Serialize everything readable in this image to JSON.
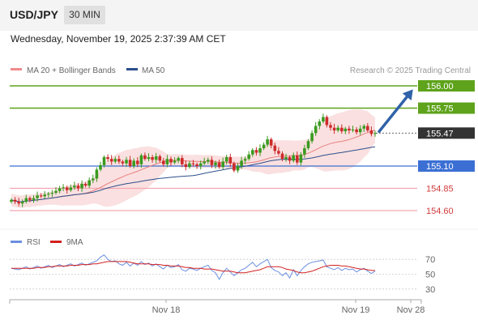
{
  "header": {
    "pair": "USD/JPY",
    "timeframe": "30 MIN",
    "datetime": "Wednesday, November 19, 2025 2:37:39 AM CET"
  },
  "legend": {
    "ma20_label": "MA 20 + Bollinger Bands",
    "ma50_label": "MA 50",
    "copyright": "Research © 2025 Trading Central",
    "rsi_label": "RSI",
    "ma9_label": "9MA"
  },
  "colors": {
    "up_candle": "#3a9a1f",
    "down_candle": "#cc2b2b",
    "ma20_band": "#f5c6c6",
    "ma20": "#e88080",
    "ma50": "#2c4f8c",
    "resistance": "#5ea31b",
    "pivot": "#3b6fd4",
    "support": "#f2a6b4",
    "arrow": "#2f62a8",
    "rsi": "#6b8fe0",
    "ma9": "#d32020",
    "last_price_bg": "#333333"
  },
  "chart_data": {
    "type": "candlestick",
    "price_axis": {
      "min": 154.5,
      "max": 156.1
    },
    "x_axis": {
      "tick_labels": [
        "Nov 18",
        "Nov 19",
        "Nov 28"
      ]
    },
    "levels": [
      {
        "value": 156.0,
        "label": "156.00",
        "kind": "resistance"
      },
      {
        "value": 155.75,
        "label": "155.75",
        "kind": "resistance"
      },
      {
        "value": 155.47,
        "label": "155.47",
        "kind": "last"
      },
      {
        "value": 155.1,
        "label": "155.10",
        "kind": "pivot"
      },
      {
        "value": 154.85,
        "label": "154.85",
        "kind": "support"
      },
      {
        "value": 154.6,
        "label": "154.60",
        "kind": "support"
      }
    ],
    "target_arrow": {
      "from": 155.47,
      "to": 156.0
    },
    "closes": [
      154.72,
      154.7,
      154.68,
      154.7,
      154.74,
      154.72,
      154.74,
      154.77,
      154.76,
      154.78,
      154.79,
      154.8,
      154.82,
      154.85,
      154.86,
      154.83,
      154.86,
      154.88,
      154.85,
      154.9,
      154.88,
      154.94,
      154.96,
      155.06,
      155.11,
      155.2,
      155.18,
      155.15,
      155.18,
      155.15,
      155.13,
      155.17,
      155.1,
      155.16,
      155.12,
      155.22,
      155.18,
      155.2,
      155.17,
      155.21,
      155.16,
      155.12,
      155.18,
      155.14,
      155.16,
      155.19,
      155.12,
      155.09,
      155.13,
      155.12,
      155.1,
      155.13,
      155.15,
      155.17,
      155.11,
      155.14,
      155.09,
      155.15,
      155.2,
      155.13,
      155.05,
      155.1,
      155.16,
      155.18,
      155.23,
      155.28,
      155.25,
      155.3,
      155.34,
      155.4,
      155.33,
      155.27,
      155.24,
      155.18,
      155.2,
      155.16,
      155.22,
      155.14,
      155.23,
      155.3,
      155.38,
      155.47,
      155.55,
      155.6,
      155.65,
      155.56,
      155.53,
      155.5,
      155.53,
      155.49,
      155.52,
      155.5,
      155.51,
      155.48,
      155.52,
      155.55,
      155.5,
      155.46,
      155.47
    ],
    "rsi": {
      "levels": [
        70,
        50,
        30
      ],
      "ylim": [
        20,
        80
      ],
      "values": [
        58,
        57,
        56,
        58,
        60,
        57,
        59,
        61,
        58,
        60,
        62,
        59,
        61,
        63,
        60,
        62,
        64,
        61,
        63,
        65,
        62,
        64,
        66,
        68,
        73,
        76,
        70,
        67,
        68,
        64,
        62,
        66,
        61,
        65,
        62,
        67,
        63,
        65,
        61,
        64,
        60,
        57,
        62,
        59,
        60,
        63,
        56,
        54,
        58,
        57,
        55,
        58,
        60,
        62,
        55,
        52,
        43,
        52,
        58,
        53,
        48,
        52,
        56,
        58,
        62,
        66,
        60,
        64,
        67,
        70,
        59,
        55,
        53,
        48,
        52,
        45,
        56,
        48,
        55,
        60,
        64,
        66,
        67,
        68,
        69,
        60,
        58,
        56,
        59,
        55,
        58,
        56,
        57,
        53,
        56,
        58,
        54,
        51,
        54
      ],
      "ma9": [
        58,
        58,
        58,
        58,
        58,
        58,
        58,
        59,
        59,
        59,
        60,
        60,
        61,
        61,
        61,
        61,
        62,
        62,
        62,
        63,
        63,
        63,
        64,
        64,
        65,
        66,
        67,
        67,
        67,
        67,
        67,
        67,
        66,
        65,
        64,
        64,
        64,
        64,
        63,
        63,
        63,
        62,
        62,
        61,
        61,
        61,
        60,
        59,
        59,
        58,
        58,
        58,
        57,
        57,
        57,
        56,
        55,
        54,
        54,
        54,
        53,
        52,
        52,
        52,
        53,
        54,
        55,
        56,
        58,
        60,
        60,
        60,
        60,
        59,
        57,
        56,
        55,
        53,
        52,
        52,
        53,
        54,
        56,
        58,
        60,
        61,
        62,
        62,
        62,
        61,
        61,
        60,
        59,
        58,
        57,
        57,
        56,
        55,
        55
      ]
    }
  }
}
